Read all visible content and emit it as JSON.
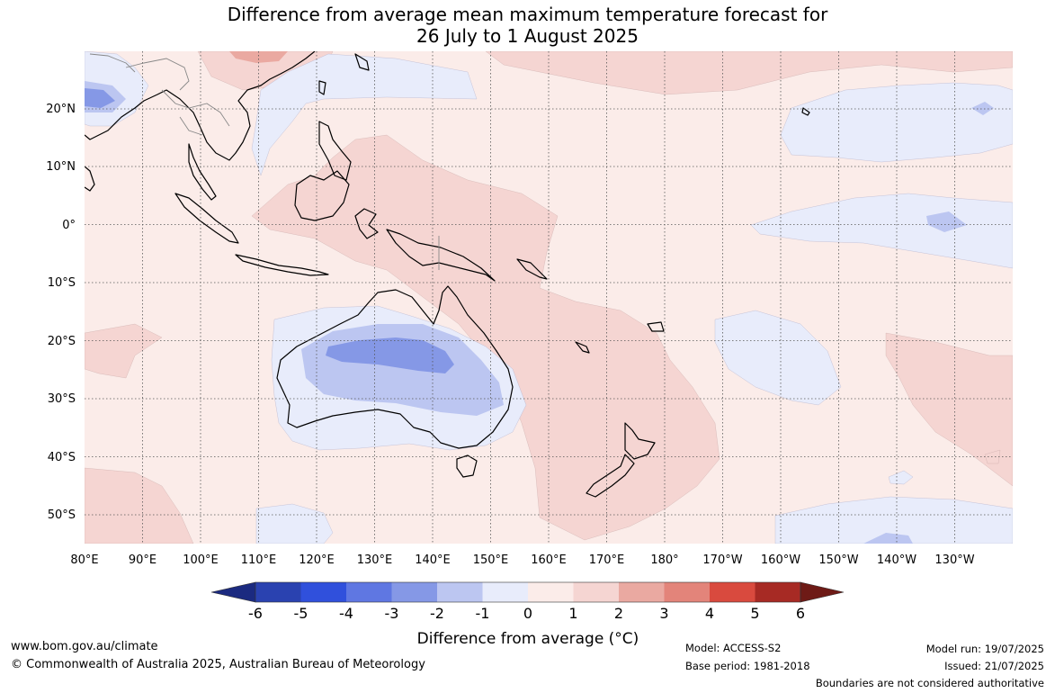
{
  "title_line1": "Difference from average mean maximum temperature forecast for",
  "title_line2": "26 July to 1 August 2025",
  "lon_labels": [
    "80°E",
    "90°E",
    "100°E",
    "110°E",
    "120°E",
    "130°E",
    "140°E",
    "150°E",
    "160°E",
    "170°E",
    "180°",
    "170°W",
    "160°W",
    "150°W",
    "140°W",
    "130°W"
  ],
  "lat_labels": [
    "20°N",
    "10°N",
    "0°",
    "10°S",
    "20°S",
    "30°S",
    "40°S",
    "50°S"
  ],
  "colorbar": {
    "ticks": [
      "-6",
      "-5",
      "-4",
      "-3",
      "-2",
      "-1",
      "0",
      "1",
      "2",
      "3",
      "4",
      "5",
      "6"
    ],
    "title": "Difference from average (°C)",
    "colors": [
      "#1b2a80",
      "#2a42b0",
      "#3050dc",
      "#5f77e2",
      "#8598e6",
      "#bcc6f1",
      "#e8ecfb",
      "#fbece9",
      "#f5d5d2",
      "#eaa9a1",
      "#e3847a",
      "#d94a3e",
      "#a72a24",
      "#6e1a16"
    ]
  },
  "footer": {
    "url": "www.bom.gov.au/climate",
    "copyright": "© Commonwealth of Australia 2025, Australian Bureau of Meteorology",
    "model": "Model: ACCESS-S2",
    "base_period": "Base period: 1981-2018",
    "model_run": "Model run: 19/07/2025",
    "issued": "Issued: 21/07/2025",
    "disclaimer": "Boundaries are not considered authoritative"
  }
}
